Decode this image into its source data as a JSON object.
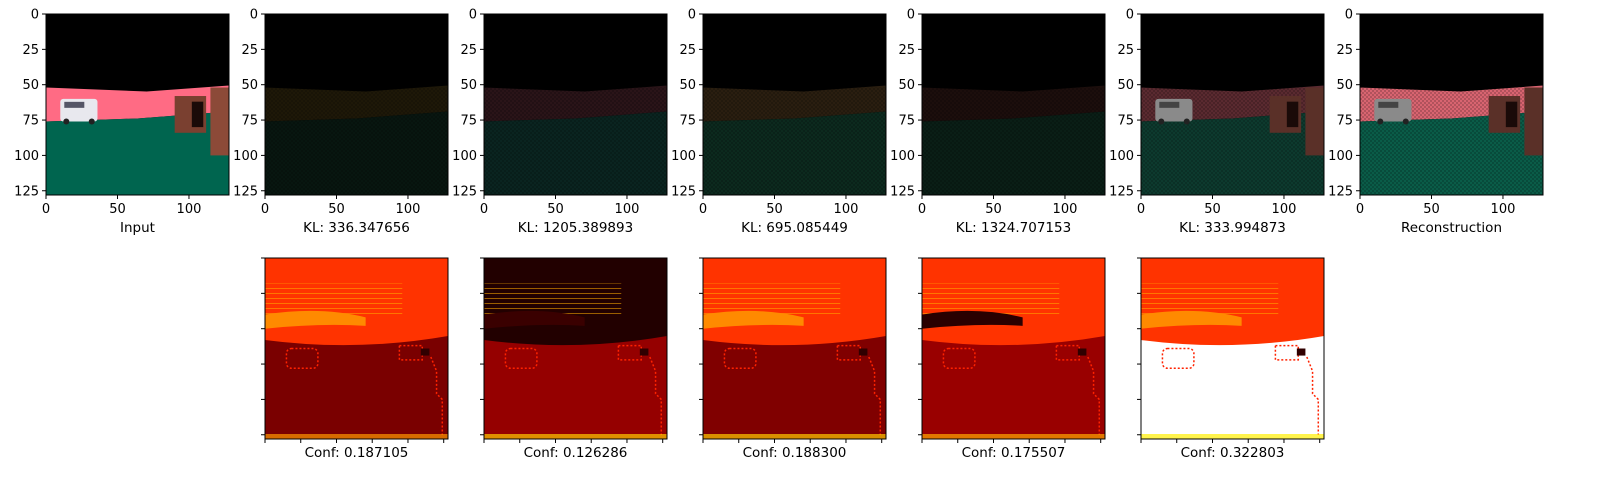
{
  "chart_data": {
    "type": "image-grid",
    "image_axis": {
      "xlim": [
        0,
        128
      ],
      "ylim": [
        128,
        0
      ],
      "xticks": [
        0,
        50,
        100
      ],
      "yticks": [
        0,
        25,
        50,
        75,
        100,
        125
      ]
    },
    "top_row": [
      {
        "caption": "Input",
        "ticks": true,
        "scene": {
          "sky": "#000000",
          "wall": "#ff6b84",
          "floor": "#00654f",
          "bright": 1.0,
          "car": true
        }
      },
      {
        "caption": "KL: 336.347656",
        "ticks": true,
        "scene": {
          "sky": "#000000",
          "wall": "#1e1808",
          "floor": "#081610",
          "bright": 1.0,
          "car": false
        }
      },
      {
        "caption": "KL: 1205.389893",
        "ticks": true,
        "scene": {
          "sky": "#000000",
          "wall": "#2a1418",
          "floor": "#0a2420",
          "bright": 1.0,
          "car": false
        }
      },
      {
        "caption": "KL: 695.085449",
        "ticks": true,
        "scene": {
          "sky": "#000000",
          "wall": "#2a1e10",
          "floor": "#0c2a1e",
          "bright": 1.0,
          "car": false
        }
      },
      {
        "caption": "KL: 1324.707153",
        "ticks": true,
        "scene": {
          "sky": "#000000",
          "wall": "#1c0e0c",
          "floor": "#0a1e16",
          "bright": 1.0,
          "car": false
        }
      },
      {
        "caption": "KL: 333.994873",
        "ticks": true,
        "scene": {
          "sky": "#000000",
          "wall": "#5a2a30",
          "floor": "#0d3a2e",
          "bright": 1.0,
          "car": true
        }
      },
      {
        "caption": "Reconstruction",
        "ticks": true,
        "scene": {
          "sky": "#000000",
          "wall": "#d86470",
          "floor": "#0a5c48",
          "bright": 1.0,
          "car": true
        }
      }
    ],
    "bottom_row": [
      {
        "caption": "Conf: 0.187105",
        "heat": {
          "top": "#ff3300",
          "bottom": "#7a0000",
          "band": "#ff8a00",
          "edge": "#ff9900"
        }
      },
      {
        "caption": "Conf: 0.126286",
        "heat": {
          "top": "#220000",
          "bottom": "#950000",
          "band": "#3a0000",
          "edge": "#ffcc00"
        }
      },
      {
        "caption": "Conf: 0.188300",
        "heat": {
          "top": "#ff3300",
          "bottom": "#800000",
          "band": "#ff8a00",
          "edge": "#ffcc00"
        }
      },
      {
        "caption": "Conf: 0.175507",
        "heat": {
          "top": "#ff3300",
          "bottom": "#990000",
          "band": "#2a0000",
          "edge": "#ffaa00"
        }
      },
      {
        "caption": "Conf: 0.322803",
        "heat": {
          "top": "#ff3300",
          "bottom": "#ffffff",
          "band": "#ff8a00",
          "edge": "#ffee00"
        }
      }
    ]
  }
}
